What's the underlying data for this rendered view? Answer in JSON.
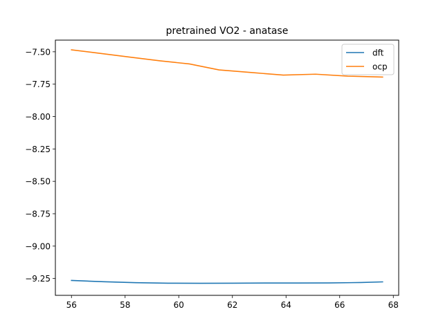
{
  "chart_data": {
    "type": "line",
    "title": "pretrained VO2 - anatase",
    "xlabel": "",
    "ylabel": "",
    "xlim": [
      55.4,
      68.2
    ],
    "ylim": [
      -9.38,
      -7.41
    ],
    "xticks": [
      56,
      58,
      60,
      62,
      64,
      66,
      68
    ],
    "xtick_labels": [
      "56",
      "58",
      "60",
      "62",
      "64",
      "66",
      "68"
    ],
    "yticks": [
      -7.5,
      -7.75,
      -8.0,
      -8.25,
      -8.5,
      -8.75,
      -9.0,
      -9.25
    ],
    "ytick_labels": [
      "−7.50",
      "−7.75",
      "−8.00",
      "−8.25",
      "−8.50",
      "−8.75",
      "−9.00",
      "−9.25"
    ],
    "grid": false,
    "legend_position": "top-right",
    "series": [
      {
        "name": "dft",
        "color": "#1f77b4",
        "x": [
          56.0,
          57.2,
          58.4,
          59.6,
          60.8,
          62.0,
          63.2,
          64.4,
          65.6,
          66.8,
          67.6
        ],
        "y": [
          -9.265,
          -9.275,
          -9.282,
          -9.286,
          -9.287,
          -9.286,
          -9.285,
          -9.285,
          -9.284,
          -9.281,
          -9.276
        ]
      },
      {
        "name": "ocp",
        "color": "#ff7f0e",
        "x": [
          56.0,
          57.1,
          58.2,
          59.3,
          60.4,
          61.5,
          62.7,
          63.9,
          65.1,
          66.3,
          67.6
        ],
        "y": [
          -7.485,
          -7.513,
          -7.542,
          -7.57,
          -7.594,
          -7.64,
          -7.66,
          -7.68,
          -7.673,
          -7.688,
          -7.695
        ]
      }
    ]
  }
}
